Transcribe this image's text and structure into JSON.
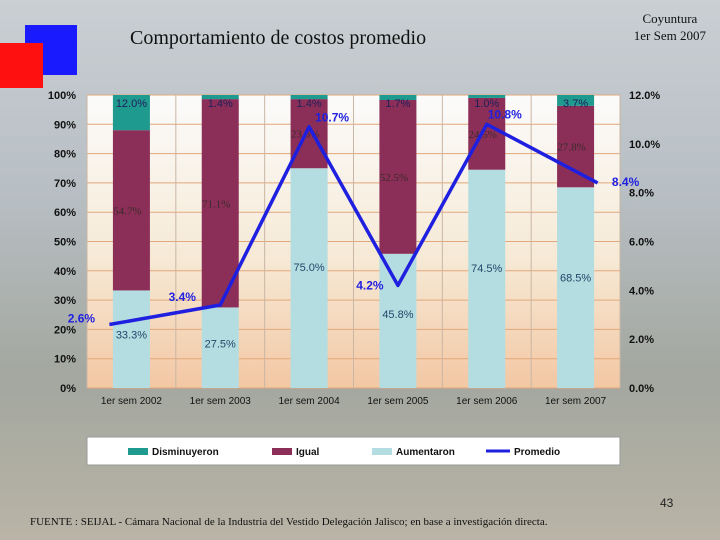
{
  "slide": {
    "title": "Comportamiento de costos promedio",
    "subtitle_line1": "Coyuntura",
    "subtitle_line2": "1er Sem 2007",
    "page_number": "43",
    "source": "FUENTE : SEIJAL - Cámara Nacional de la Industria del Vestido Delegación Jalisco; en base a investigación directa."
  },
  "chart_data": {
    "type": "bar",
    "stacked": true,
    "categories": [
      "1er sem 2002",
      "1er sem 2003",
      "1er sem 2004",
      "1er sem 2005",
      "1er sem 2006",
      "1er sem 2007"
    ],
    "series": [
      {
        "name": "Aumentaron",
        "values": [
          33.3,
          27.5,
          75.0,
          45.8,
          74.5,
          68.5
        ],
        "labels": [
          "33.3%",
          "27.5%",
          "75.0%",
          "45.8%",
          "74.5%",
          "68.5%"
        ],
        "color": "#b3dde0"
      },
      {
        "name": "Igual",
        "values": [
          54.7,
          71.1,
          23.6,
          52.5,
          24.5,
          27.8
        ],
        "labels": [
          "54.7%",
          "71.1%",
          "23.6%",
          "52.5%",
          "24.5%",
          "27.8%"
        ],
        "color": "#8b2f58"
      },
      {
        "name": "Disminuyeron",
        "values": [
          12.0,
          1.4,
          1.4,
          1.7,
          1.0,
          3.7
        ],
        "labels": [
          "12.0%",
          "1.4%",
          "1.4%",
          "1.7%",
          "1.0%",
          "3.7%"
        ],
        "color": "#1f9a8f"
      }
    ],
    "line": {
      "name": "Promedio",
      "axis": "right",
      "values": [
        2.6,
        3.4,
        10.7,
        4.2,
        10.8,
        8.4
      ],
      "labels": [
        "2.6%",
        "3.4%",
        "10.7%",
        "4.2%",
        "10.8%",
        "8.4%"
      ],
      "color": "#1f1fe0"
    },
    "left_axis": {
      "ticks": [
        "0%",
        "10%",
        "20%",
        "30%",
        "40%",
        "50%",
        "60%",
        "70%",
        "80%",
        "90%",
        "100%"
      ],
      "ylim": [
        0,
        100
      ]
    },
    "right_axis": {
      "ticks": [
        "0.0%",
        "2.0%",
        "4.0%",
        "6.0%",
        "8.0%",
        "10.0%",
        "12.0%"
      ],
      "ylim": [
        0,
        12
      ]
    },
    "legend": {
      "position": "bottom",
      "items": [
        {
          "label": "Disminuyeron",
          "color": "#1f9a8f",
          "kind": "box"
        },
        {
          "label": "Igual",
          "color": "#8b2f58",
          "kind": "box"
        },
        {
          "label": "Aumentaron",
          "color": "#b3dde0",
          "kind": "box"
        },
        {
          "label": "Promedio",
          "color": "#1f1fe0",
          "kind": "line"
        }
      ]
    },
    "grid": true
  }
}
